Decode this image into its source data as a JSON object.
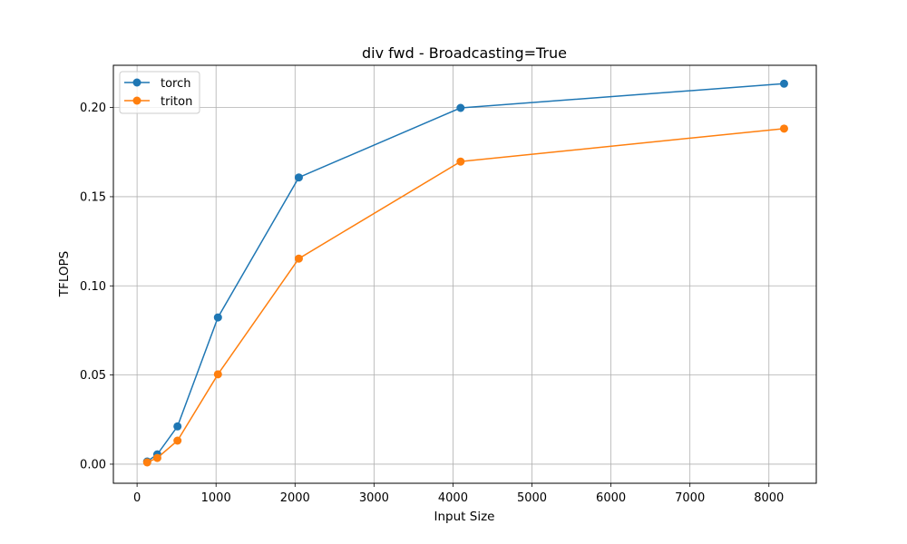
{
  "chart_data": {
    "type": "line",
    "title": "div fwd - Broadcasting=True",
    "xlabel": "Input Size",
    "ylabel": "TFLOPS",
    "xlim": [
      -300,
      8600
    ],
    "ylim": [
      -0.0107,
      0.2237
    ],
    "xticks": [
      0,
      1000,
      2000,
      3000,
      4000,
      5000,
      6000,
      7000,
      8000
    ],
    "yticks": [
      0.0,
      0.05,
      0.1,
      0.15,
      0.2
    ],
    "ytick_labels": [
      "0.00",
      "0.05",
      "0.10",
      "0.15",
      "0.20"
    ],
    "grid": true,
    "legend_position": "top-left",
    "x": [
      128,
      256,
      512,
      1024,
      2048,
      4096,
      8192
    ],
    "series": [
      {
        "name": "torch",
        "color": "#1f77b4",
        "values": [
          0.0015,
          0.0055,
          0.0212,
          0.0823,
          0.1608,
          0.1998,
          0.2134
        ]
      },
      {
        "name": "triton",
        "color": "#ff7f0e",
        "values": [
          0.001,
          0.0035,
          0.0132,
          0.0504,
          0.1153,
          0.1697,
          0.1882
        ]
      }
    ]
  }
}
